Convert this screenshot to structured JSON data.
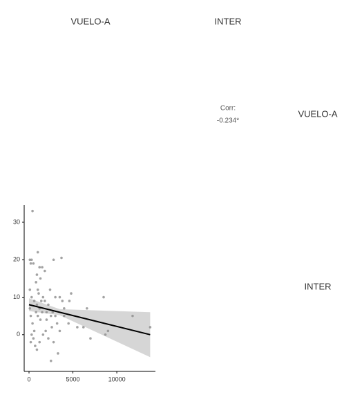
{
  "chart_data": {
    "type": "scatter",
    "column_labels": [
      "VUELO-A",
      "INTER"
    ],
    "row_labels": [
      "VUELO-A",
      "INTER"
    ],
    "corr_label": "Corr:",
    "corr_value": "-0.234*",
    "x": [
      400,
      300,
      100,
      500,
      200,
      1500,
      1200,
      1800,
      900,
      1300,
      800,
      1000,
      1600,
      3000,
      3500,
      4800,
      2800,
      3700,
      1000,
      8500,
      6600,
      300,
      600,
      900,
      1200,
      1500,
      2000,
      2500,
      2000,
      3000,
      4000,
      4500,
      5500,
      6200,
      7000,
      8700,
      9000,
      11800,
      13800,
      100,
      200,
      400,
      600,
      300,
      500,
      700,
      200,
      900,
      1200,
      1600,
      2200,
      2500,
      3300,
      2800,
      3500,
      3200,
      2700,
      4000,
      1800,
      2200,
      1000,
      1300,
      2600,
      1900,
      800,
      1400,
      1100,
      2400,
      3800,
      4600,
      100
    ],
    "y": [
      33,
      20,
      20,
      19,
      19,
      18,
      18,
      17,
      16,
      15,
      14,
      12,
      10,
      10,
      10,
      11,
      20,
      20.5,
      22,
      10,
      7,
      10,
      9,
      8,
      7,
      6,
      6,
      5,
      4,
      5,
      5,
      3,
      2,
      2,
      -1,
      0,
      1,
      5,
      2,
      7,
      5,
      3,
      1,
      0,
      -1,
      -3,
      -2,
      -4,
      -2,
      0,
      -1,
      -7,
      -5,
      -2,
      1,
      3,
      6,
      7,
      9,
      8,
      5,
      4,
      2,
      1,
      6,
      9,
      11,
      12,
      9,
      9,
      12
    ],
    "color": "#8c8c8c",
    "fit": {
      "x": [
        0,
        3500,
        13800
      ],
      "y": [
        8,
        5.97,
        0
      ],
      "upper": [
        9.7,
        6.8,
        6
      ],
      "lower": [
        6.3,
        5.2,
        -6
      ],
      "color": "#000000",
      "band_color": "#cccccc"
    },
    "xlim": [
      -550,
      14400
    ],
    "ylim": [
      -9.8,
      34.6
    ],
    "xticks": [
      0,
      5000,
      10000
    ],
    "yticks": [
      0,
      10,
      20,
      30
    ]
  }
}
